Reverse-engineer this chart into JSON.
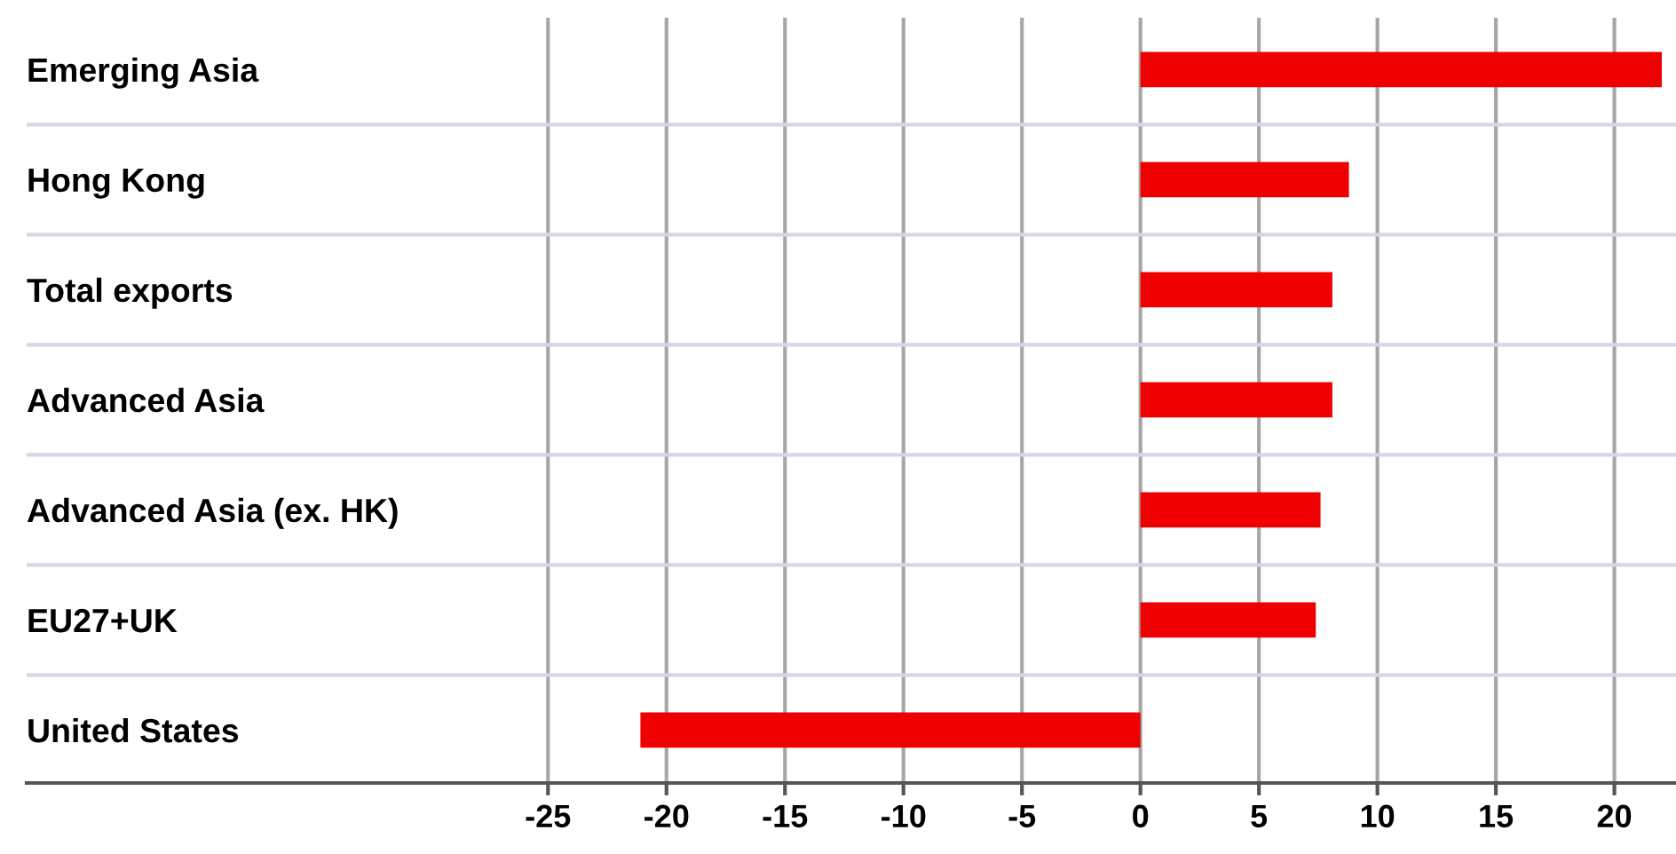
{
  "chart_data": {
    "type": "bar",
    "orientation": "horizontal",
    "categories": [
      "Emerging Asia",
      "Hong Kong",
      "Total exports",
      "Advanced Asia",
      "Advanced Asia (ex. HK)",
      "EU27+UK",
      "United States"
    ],
    "values": [
      22.0,
      8.8,
      8.1,
      8.1,
      7.6,
      7.4,
      -21.1
    ],
    "color": "#ee0000",
    "xlim": [
      -47,
      22.6
    ],
    "xticks": [
      -25,
      -20,
      -15,
      -10,
      -5,
      0,
      5,
      10,
      15,
      20
    ],
    "grid": true
  }
}
